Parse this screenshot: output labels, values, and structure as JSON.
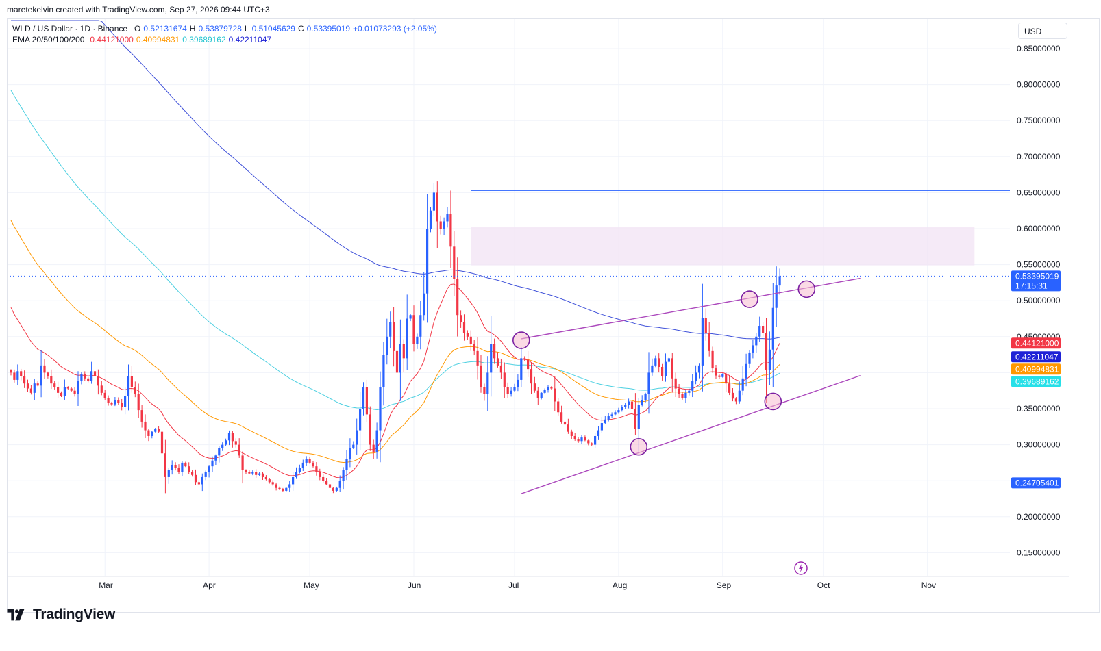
{
  "caption": "maretekelvin created with TradingView.com, Sep 27, 2026 09:44 UTC+3",
  "brand": "TradingView",
  "currency": "USD",
  "legend": {
    "symbol": "WLD / US Dollar · 1D · Binance",
    "o_label": "O",
    "o": "0.52131674",
    "h_label": "H",
    "h": "0.53879728",
    "l_label": "L",
    "l": "0.51045629",
    "c_label": "C",
    "c": "0.53395019",
    "change": "+0.01073293 (+2.05%)",
    "ema_name": "EMA 20/50/100/200",
    "ema20": "0.44121000",
    "ema50": "0.40994831",
    "ema100": "0.39689162",
    "ema200": "0.42211047"
  },
  "colors": {
    "up": "#2962ff",
    "down": "#f23645",
    "ema20": "#f23645",
    "ema50": "#ff9800",
    "ema100": "#4dd0e1",
    "ema200": "#3f51d9",
    "trendline": "#ab47bc",
    "resistance": "#2962ff",
    "zone": "#f3e5f5",
    "circle_fill": "#f8bbd0"
  },
  "chart_data": {
    "type": "candlestick",
    "ylim": [
      0.125,
      0.9
    ],
    "y_ticks": [
      "0.85000000",
      "0.80000000",
      "0.75000000",
      "0.70000000",
      "0.65000000",
      "0.60000000",
      "0.55000000",
      "0.50000000",
      "0.45000000",
      "0.35000000",
      "0.30000000",
      "0.20000000",
      "0.15000000"
    ],
    "x_labels": [
      {
        "label": "Mar",
        "date": "2026-03-01"
      },
      {
        "label": "Apr",
        "date": "2026-04-01"
      },
      {
        "label": "May",
        "date": "2026-05-01"
      },
      {
        "label": "Jun",
        "date": "2026-06-01"
      },
      {
        "label": "Jul",
        "date": "2026-07-01"
      },
      {
        "label": "Aug",
        "date": "2026-08-01"
      },
      {
        "label": "Sep",
        "date": "2026-09-01"
      },
      {
        "label": "Oct",
        "date": "2026-10-01"
      },
      {
        "label": "Nov",
        "date": "2026-11-01"
      }
    ],
    "start_date": "2026-02-01",
    "closes": [
      0.4,
      0.39,
      0.402,
      0.395,
      0.385,
      0.378,
      0.372,
      0.385,
      0.382,
      0.41,
      0.4,
      0.395,
      0.385,
      0.38,
      0.372,
      0.368,
      0.38,
      0.378,
      0.375,
      0.37,
      0.388,
      0.398,
      0.392,
      0.388,
      0.402,
      0.395,
      0.382,
      0.372,
      0.365,
      0.358,
      0.356,
      0.362,
      0.358,
      0.352,
      0.368,
      0.395,
      0.38,
      0.37,
      0.348,
      0.332,
      0.32,
      0.312,
      0.318,
      0.322,
      0.318,
      0.288,
      0.255,
      0.265,
      0.272,
      0.268,
      0.262,
      0.275,
      0.27,
      0.262,
      0.258,
      0.248,
      0.245,
      0.255,
      0.262,
      0.27,
      0.278,
      0.285,
      0.295,
      0.3,
      0.306,
      0.316,
      0.305,
      0.3,
      0.285,
      0.265,
      0.262,
      0.26,
      0.262,
      0.258,
      0.26,
      0.255,
      0.252,
      0.248,
      0.245,
      0.24,
      0.238,
      0.236,
      0.24,
      0.245,
      0.255,
      0.262,
      0.268,
      0.275,
      0.28,
      0.275,
      0.27,
      0.262,
      0.255,
      0.25,
      0.245,
      0.24,
      0.236,
      0.24,
      0.25,
      0.265,
      0.28,
      0.295,
      0.3,
      0.32,
      0.35,
      0.38,
      0.342,
      0.3,
      0.29,
      0.32,
      0.38,
      0.425,
      0.45,
      0.47,
      0.43,
      0.4,
      0.44,
      0.42,
      0.475,
      0.48,
      0.44,
      0.45,
      0.48,
      0.51,
      0.6,
      0.625,
      0.65,
      0.61,
      0.6,
      0.61,
      0.62,
      0.575,
      0.53,
      0.48,
      0.47,
      0.455,
      0.45,
      0.44,
      0.43,
      0.41,
      0.38,
      0.37,
      0.4,
      0.44,
      0.42,
      0.41,
      0.4,
      0.38,
      0.37,
      0.375,
      0.38,
      0.39,
      0.42,
      0.418,
      0.405,
      0.385,
      0.375,
      0.365,
      0.372,
      0.376,
      0.38,
      0.378,
      0.36,
      0.345,
      0.332,
      0.328,
      0.318,
      0.312,
      0.308,
      0.305,
      0.31,
      0.306,
      0.302,
      0.3,
      0.312,
      0.32,
      0.33,
      0.335,
      0.34,
      0.342,
      0.345,
      0.348,
      0.352,
      0.355,
      0.36,
      0.35,
      0.322,
      0.355,
      0.362,
      0.37,
      0.4,
      0.41,
      0.42,
      0.408,
      0.395,
      0.415,
      0.42,
      0.392,
      0.378,
      0.37,
      0.365,
      0.372,
      0.375,
      0.388,
      0.4,
      0.41,
      0.476,
      0.455,
      0.43,
      0.406,
      0.396,
      0.394,
      0.398,
      0.385,
      0.372,
      0.364,
      0.36,
      0.375,
      0.392,
      0.412,
      0.428,
      0.438,
      0.45,
      0.465,
      0.455,
      0.404,
      0.432,
      0.49,
      0.521,
      0.534
    ],
    "ema20_last": 0.44121,
    "ema50_last": 0.40994831,
    "ema100_last": 0.39689162,
    "ema200_last": 0.42211047,
    "horizontal_line": 0.653,
    "zone": {
      "from_date": "2026-06-18",
      "to_date": "2026-11-15",
      "low": 0.549,
      "high": 0.602
    },
    "upper_trendline": {
      "start": [
        "2026-07-03",
        0.447
      ],
      "end": [
        "2026-10-12",
        0.531
      ]
    },
    "lower_trendline": {
      "start": [
        "2026-07-03",
        0.232
      ],
      "end": [
        "2026-10-12",
        0.396
      ]
    },
    "circles": [
      {
        "date": "2026-07-03",
        "price": 0.445
      },
      {
        "date": "2026-08-07",
        "price": 0.297
      },
      {
        "date": "2026-09-09",
        "price": 0.502
      },
      {
        "date": "2026-09-16",
        "price": 0.36
      },
      {
        "date": "2026-09-26",
        "price": 0.516
      }
    ],
    "price_tags": [
      {
        "label": "0.53395019",
        "sub": "17:15:31",
        "value": 0.534,
        "color": "#2962ff"
      },
      {
        "label": "0.44121000",
        "value": 0.441,
        "color": "#f23645"
      },
      {
        "label": "0.42211047",
        "value": 0.422,
        "color": "#1e22d6"
      },
      {
        "label": "0.40994831",
        "value": 0.41,
        "color": "#ff9800"
      },
      {
        "label": "0.39689162",
        "value": 0.397,
        "color": "#26e0e8"
      },
      {
        "label": "0.24705401",
        "value": 0.247,
        "color": "#2962ff"
      }
    ]
  }
}
